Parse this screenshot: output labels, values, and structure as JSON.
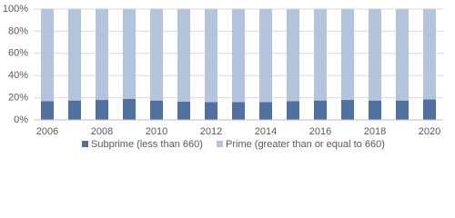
{
  "chart_data": {
    "type": "bar",
    "stacked": true,
    "categories": [
      "2006",
      null,
      "2008",
      null,
      "2010",
      null,
      "2012",
      null,
      "2014",
      null,
      "2016",
      null,
      "2018",
      null,
      "2020"
    ],
    "series": [
      {
        "name": "Subprime (less than 660)",
        "color": "#50709f",
        "values": [
          17,
          17.5,
          18,
          19,
          17.5,
          16.5,
          16,
          16,
          16,
          17,
          17.5,
          18,
          17.5,
          17.5,
          18.5
        ]
      },
      {
        "name": "Prime (greater than or equal to 660)",
        "color": "#b4c4dc",
        "values": [
          83,
          82.5,
          82,
          81,
          82.5,
          83.5,
          84,
          84,
          84,
          83,
          82.5,
          82,
          82.5,
          82.5,
          81.5
        ]
      }
    ],
    "ylim": [
      0,
      100
    ],
    "yticks": [
      {
        "value": 0,
        "label": "0%"
      },
      {
        "value": 20,
        "label": "20%"
      },
      {
        "value": 40,
        "label": "40%"
      },
      {
        "value": 60,
        "label": "60%"
      },
      {
        "value": 80,
        "label": "80%"
      },
      {
        "value": 100,
        "label": "100%"
      }
    ],
    "grid": true
  }
}
